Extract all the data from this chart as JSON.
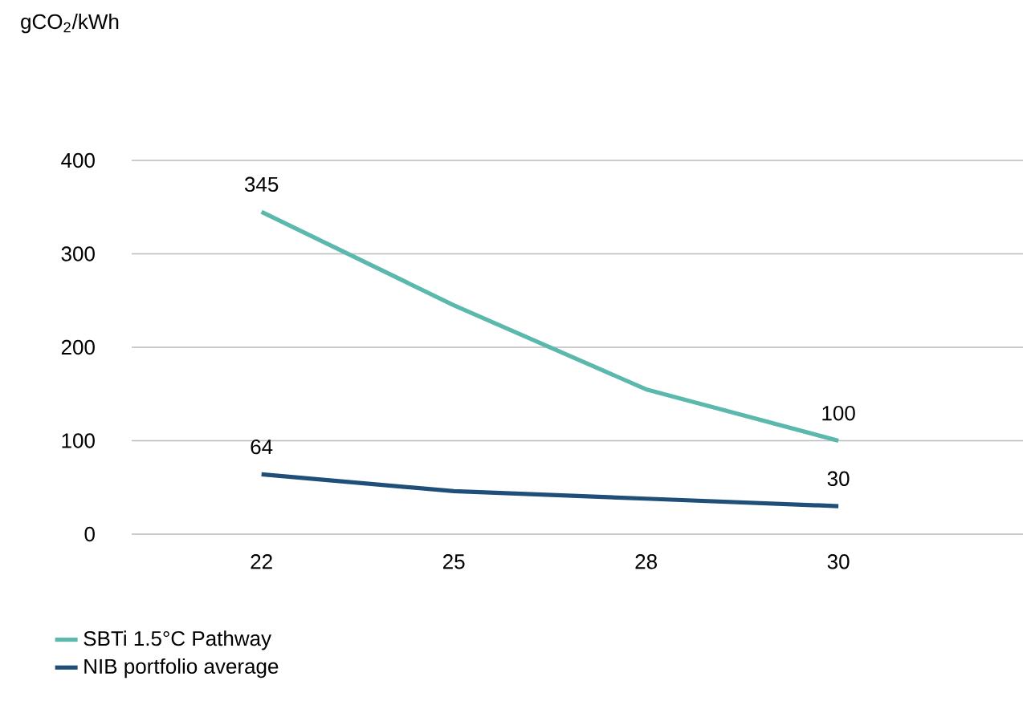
{
  "chart_data": {
    "type": "line",
    "annotations": [
      "gCO$_{2}$/kWh"
    ],
    "categories": [
      "22",
      "25",
      "28",
      "30"
    ],
    "series": [
      {
        "name": "SBTi 1.5°C Pathway",
        "color": "#5bb8ad",
        "values": [
          345,
          245,
          155,
          100
        ],
        "value_labels": [
          "345",
          null,
          null,
          "100"
        ]
      },
      {
        "name": "NIB portfolio average",
        "color": "#1f4e79",
        "values": [
          64,
          46,
          38,
          30
        ],
        "value_labels": [
          "64",
          null,
          null,
          "30"
        ]
      }
    ],
    "ylim": [
      0,
      400
    ],
    "yticks": [
      0,
      100,
      200,
      300,
      400
    ],
    "grid": "y",
    "legend": "bottom"
  }
}
